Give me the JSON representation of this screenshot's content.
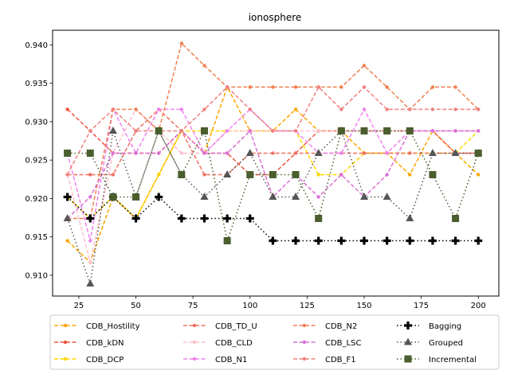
{
  "chart_data": {
    "type": "line",
    "title": "ionosphere",
    "xlabel": "",
    "ylabel": "",
    "x": [
      20,
      30,
      40,
      50,
      60,
      70,
      80,
      90,
      100,
      110,
      120,
      130,
      140,
      150,
      160,
      170,
      180,
      190,
      200
    ],
    "xlim": [
      13.5,
      209
    ],
    "ylim": [
      0.9073,
      0.9419
    ],
    "xticks": [
      "25",
      "50",
      "75",
      "100",
      "125",
      "150",
      "175",
      "200"
    ],
    "xtick_values": [
      25,
      50,
      75,
      100,
      125,
      150,
      175,
      200
    ],
    "yticks": [
      "0.910",
      "0.915",
      "0.920",
      "0.925",
      "0.930",
      "0.935",
      "0.940"
    ],
    "ytick_values": [
      0.91,
      0.915,
      0.92,
      0.925,
      0.93,
      0.935,
      0.94
    ],
    "grid": false,
    "legend_position": "bottom",
    "series": [
      {
        "name": "CDB_Hostility",
        "color": "#ffa500",
        "style": "dashed",
        "marker": "dot",
        "values": [
          0.9145,
          0.9117,
          0.9202,
          0.9174,
          0.9231,
          0.9288,
          0.9259,
          0.9345,
          0.9288,
          0.9288,
          0.9316,
          0.9288,
          0.9288,
          0.9259,
          0.9259,
          0.9231,
          0.9288,
          0.9259,
          0.9231
        ]
      },
      {
        "name": "CDB_kDN",
        "color": "#f0533e",
        "style": "dashed",
        "marker": "dot",
        "values": [
          0.9316,
          0.9288,
          0.9259,
          0.9259,
          0.9259,
          0.9288,
          0.9259,
          0.9259,
          0.9231,
          0.9231,
          0.9259,
          0.9288,
          0.9288,
          0.9288,
          0.9288,
          0.9288,
          0.9288,
          0.9259,
          0.9259
        ]
      },
      {
        "name": "CDB_DCP",
        "color": "#ffd700",
        "style": "dashed",
        "marker": "dot",
        "values": [
          0.9202,
          0.9174,
          0.9202,
          0.9174,
          0.9231,
          0.9288,
          0.9288,
          0.9288,
          0.9288,
          0.9288,
          0.9288,
          0.9231,
          0.9231,
          0.9259,
          0.9259,
          0.9259,
          0.9259,
          0.9259,
          0.9288
        ]
      },
      {
        "name": "CDB_TD_U",
        "color": "#f07060",
        "style": "dashed",
        "marker": "dot",
        "values": [
          0.9231,
          0.9231,
          0.9231,
          0.9288,
          0.9316,
          0.9288,
          0.9231,
          0.9231,
          0.9259,
          0.9259,
          0.9259,
          0.9259,
          0.9259,
          0.9259,
          0.9259,
          0.9259,
          0.9259,
          0.9259,
          0.9259
        ]
      },
      {
        "name": "CDB_CLD",
        "color": "#ffc0cb",
        "style": "dashed",
        "marker": "dot",
        "values": [
          0.9231,
          0.9117,
          0.9259,
          0.9316,
          0.9288,
          0.9259,
          0.9259,
          0.9288,
          0.9288,
          0.9288,
          0.9288,
          0.9288,
          0.9288,
          0.9288,
          0.9288,
          0.9288,
          0.9288,
          0.9288,
          0.9288
        ]
      },
      {
        "name": "CDB_N1",
        "color": "#ee82ee",
        "style": "dashed",
        "marker": "dot",
        "values": [
          0.9259,
          0.9145,
          0.9316,
          0.9259,
          0.9316,
          0.9316,
          0.9259,
          0.9288,
          0.9316,
          0.9288,
          0.9288,
          0.9259,
          0.9259,
          0.9316,
          0.9259,
          0.9288,
          0.9288,
          0.9288,
          0.9288
        ]
      },
      {
        "name": "CDB_N2",
        "color": "#f08050",
        "style": "dashed",
        "marker": "dot",
        "values": [
          0.9174,
          0.9174,
          0.9316,
          0.9316,
          0.9288,
          0.9402,
          0.9373,
          0.9345,
          0.9345,
          0.9345,
          0.9345,
          0.9345,
          0.9345,
          0.9373,
          0.9345,
          0.9316,
          0.9345,
          0.9345,
          0.9316
        ]
      },
      {
        "name": "CDB_LSC",
        "color": "#da70d6",
        "style": "dashed",
        "marker": "dot",
        "values": [
          0.9174,
          0.9202,
          0.9259,
          0.9259,
          0.9259,
          0.9288,
          0.9259,
          0.9259,
          0.9288,
          0.9202,
          0.9231,
          0.9202,
          0.9231,
          0.9202,
          0.9231,
          0.9288,
          0.9288,
          0.9288,
          0.9288
        ]
      },
      {
        "name": "CDB_F1",
        "color": "#f08080",
        "style": "dashed",
        "marker": "dot",
        "values": [
          0.9231,
          0.9288,
          0.9316,
          0.9288,
          0.9288,
          0.9288,
          0.9316,
          0.9345,
          0.9316,
          0.9288,
          0.9288,
          0.9345,
          0.9316,
          0.9345,
          0.9316,
          0.9316,
          0.9316,
          0.9316,
          0.9316
        ]
      },
      {
        "name": "Bagging",
        "color": "#000000",
        "style": "dotted",
        "marker": "plus",
        "values": [
          0.9202,
          0.9174,
          0.9202,
          0.9174,
          0.9202,
          0.9174,
          0.9174,
          0.9174,
          0.9174,
          0.9145,
          0.9145,
          0.9145,
          0.9145,
          0.9145,
          0.9145,
          0.9145,
          0.9145,
          0.9145,
          0.9145
        ]
      },
      {
        "name": "Grouped",
        "color": "#555555",
        "style": "dotted",
        "marker": "triangle",
        "values": [
          0.9174,
          0.9089,
          0.9288,
          0.9202,
          0.9288,
          0.9231,
          0.9202,
          0.9231,
          0.9259,
          0.9202,
          0.9202,
          0.9259,
          0.9288,
          0.9202,
          0.9202,
          0.9174,
          0.9259,
          0.9259,
          0.9259
        ]
      },
      {
        "name": "Incremental",
        "color": "#4a5e2e",
        "style": "dotted",
        "marker": "square",
        "values": [
          0.9259,
          0.9259,
          0.9202,
          0.9202,
          0.9288,
          0.9231,
          0.9288,
          0.9145,
          0.9231,
          0.9231,
          0.9231,
          0.9174,
          0.9288,
          0.9288,
          0.9288,
          0.9288,
          0.9231,
          0.9174,
          0.9259
        ]
      }
    ]
  }
}
